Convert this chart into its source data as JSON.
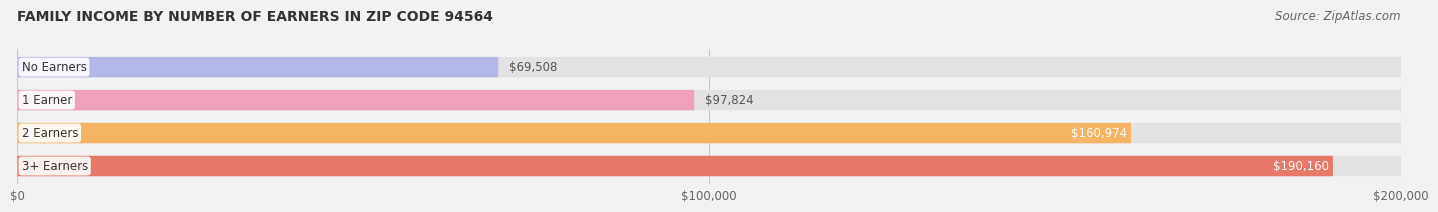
{
  "title": "FAMILY INCOME BY NUMBER OF EARNERS IN ZIP CODE 94564",
  "source": "Source: ZipAtlas.com",
  "categories": [
    "No Earners",
    "1 Earner",
    "2 Earners",
    "3+ Earners"
  ],
  "values": [
    69508,
    97824,
    160974,
    190160
  ],
  "bar_colors": [
    "#b4b8e8",
    "#f0a0b8",
    "#f5b464",
    "#e87868"
  ],
  "value_labels": [
    "$69,508",
    "$97,824",
    "$160,974",
    "$190,160"
  ],
  "xlim": [
    0,
    200000
  ],
  "xticks": [
    0,
    100000,
    200000
  ],
  "xtick_labels": [
    "$0",
    "$100,000",
    "$200,000"
  ],
  "background_color": "#f2f2f2",
  "bar_bg_color": "#e2e2e2",
  "title_fontsize": 10,
  "source_fontsize": 8.5,
  "bar_height": 0.62,
  "value_inside_threshold": 2,
  "value_label_colors_inside": [
    "white",
    "white"
  ],
  "value_label_colors_outside": [
    "#555555",
    "#555555"
  ]
}
